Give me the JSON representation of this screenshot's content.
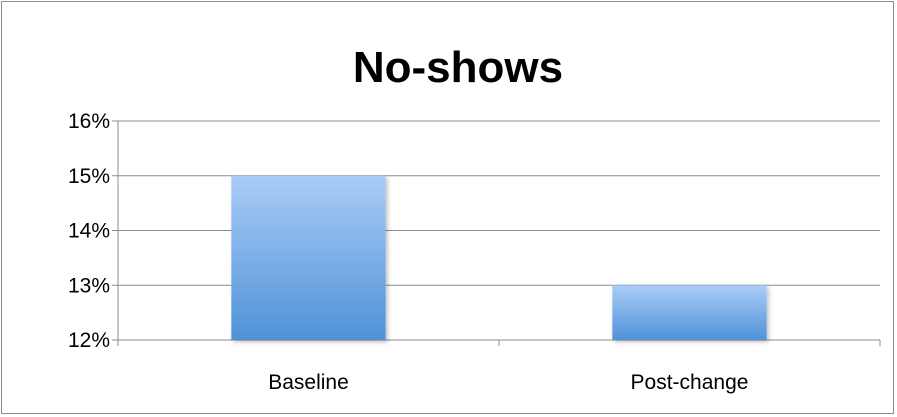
{
  "chart_data": {
    "type": "bar",
    "title": "No-shows",
    "categories": [
      "Baseline",
      "Post-change"
    ],
    "series": [
      {
        "values": [
          15,
          13
        ]
      }
    ],
    "ylim": [
      12,
      16
    ],
    "yticks": [
      12,
      13,
      14,
      15,
      16
    ],
    "ytick_labels": [
      "12%",
      "13%",
      "14%",
      "15%",
      "16%"
    ],
    "xlabel": "",
    "ylabel": "",
    "grid": true,
    "legend": "none",
    "colors": {
      "bar_top": "#a9ccf7",
      "bar_bottom": "#4f92d8",
      "gridline": "#8c8c8c",
      "axis": "#8c8c8c"
    }
  }
}
